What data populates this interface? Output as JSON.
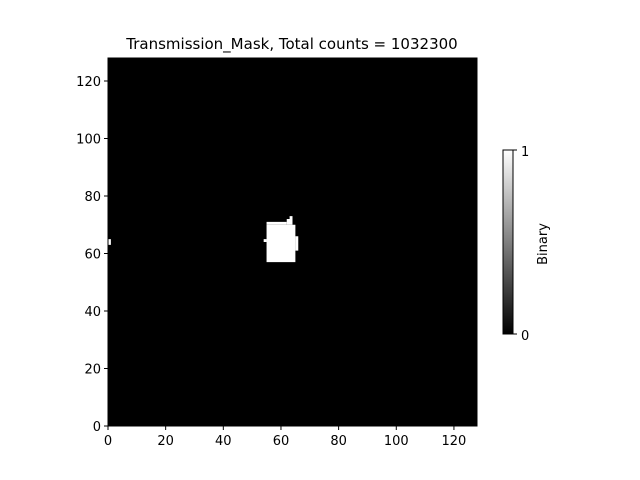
{
  "chart_data": {
    "type": "heatmap",
    "title": "Transmission_Mask, Total counts = 1032300",
    "xlabel": "",
    "ylabel": "",
    "xlim": [
      0,
      128
    ],
    "ylim": [
      0,
      128
    ],
    "x_ticks": [
      "0",
      "20",
      "40",
      "60",
      "80",
      "100",
      "120"
    ],
    "y_ticks": [
      "0",
      "20",
      "40",
      "60",
      "80",
      "100",
      "120"
    ],
    "x_tick_values": [
      0,
      20,
      40,
      60,
      80,
      100,
      120
    ],
    "y_tick_values": [
      0,
      20,
      40,
      60,
      80,
      100,
      120
    ],
    "colormap": "gray",
    "background_value": 0,
    "colorbar": {
      "label": "Binary",
      "ticks": [
        "0",
        "1"
      ],
      "min": 0,
      "max": 1
    },
    "mask_regions": [
      {
        "x": [
          55,
          65
        ],
        "y": [
          57,
          70
        ],
        "value": 1
      },
      {
        "x": [
          55,
          62
        ],
        "y": [
          70,
          71
        ],
        "value": 1
      },
      {
        "x": [
          62,
          64
        ],
        "y": [
          70,
          72
        ],
        "value": 1
      },
      {
        "x": [
          63,
          64
        ],
        "y": [
          71,
          73
        ],
        "value": 1
      },
      {
        "x": [
          65,
          66
        ],
        "y": [
          61,
          66
        ],
        "value": 1
      },
      {
        "x": [
          54,
          55
        ],
        "y": [
          64,
          65
        ],
        "value": 1
      },
      {
        "x": [
          0,
          1
        ],
        "y": [
          63,
          65
        ],
        "value": 1
      }
    ],
    "grid": false
  },
  "colors": {
    "background": "#000000",
    "mask": "#ffffff"
  }
}
